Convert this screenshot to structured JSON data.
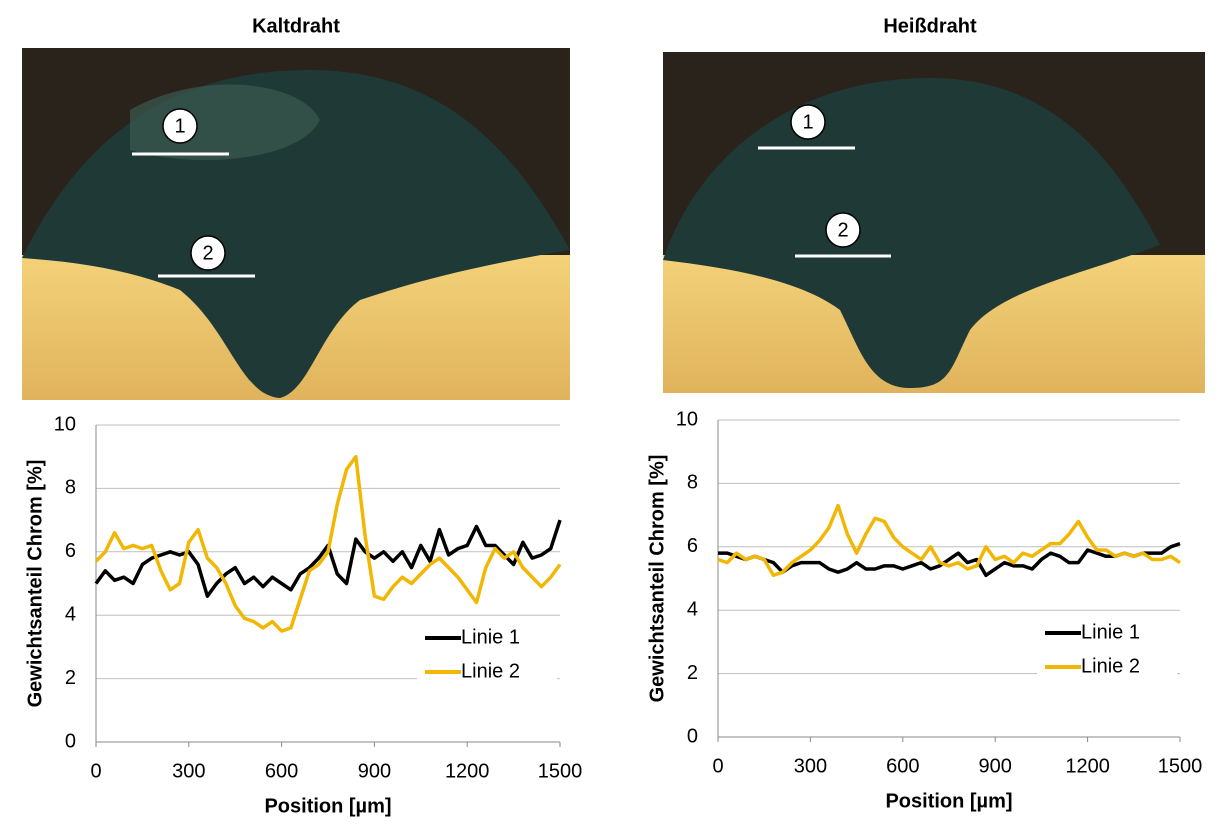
{
  "chart_data": [
    {
      "type": "line",
      "title": "Kaltdraht",
      "annotations": [
        "1",
        "2"
      ],
      "x_label": "Position [µm]",
      "y_label": "Gewichtsanteil Chrom [%]",
      "x": [
        0,
        30,
        60,
        90,
        120,
        150,
        180,
        210,
        240,
        270,
        300,
        330,
        360,
        390,
        420,
        450,
        480,
        510,
        540,
        570,
        600,
        630,
        660,
        690,
        720,
        750,
        780,
        810,
        840,
        870,
        900,
        930,
        960,
        990,
        1020,
        1050,
        1080,
        1110,
        1140,
        1170,
        1200,
        1230,
        1260,
        1290,
        1320,
        1350,
        1380,
        1410,
        1440,
        1470,
        1500
      ],
      "series": [
        {
          "name": "Linie 1",
          "color": "#000000",
          "values": [
            5.0,
            5.4,
            5.1,
            5.2,
            5.0,
            5.6,
            5.8,
            5.9,
            6.0,
            5.9,
            6.0,
            5.6,
            4.6,
            5.0,
            5.3,
            5.5,
            5.0,
            5.2,
            4.9,
            5.2,
            5.0,
            4.8,
            5.3,
            5.5,
            5.8,
            6.2,
            5.3,
            5.0,
            6.4,
            6.0,
            5.8,
            6.0,
            5.7,
            6.0,
            5.5,
            6.2,
            5.7,
            6.7,
            5.9,
            6.1,
            6.2,
            6.8,
            6.2,
            6.2,
            5.9,
            5.6,
            6.3,
            5.8,
            5.9,
            6.1,
            7.0
          ]
        },
        {
          "name": "Linie 2",
          "color": "#f2b705",
          "values": [
            5.7,
            6.0,
            6.6,
            6.1,
            6.2,
            6.1,
            6.2,
            5.4,
            4.8,
            5.0,
            6.3,
            6.7,
            5.8,
            5.5,
            5.0,
            4.3,
            3.9,
            3.8,
            3.6,
            3.8,
            3.5,
            3.6,
            4.5,
            5.4,
            5.6,
            6.0,
            7.5,
            8.6,
            9.0,
            6.5,
            4.6,
            4.5,
            4.9,
            5.2,
            5.0,
            5.3,
            5.6,
            5.8,
            5.5,
            5.2,
            4.8,
            4.4,
            5.5,
            6.1,
            5.8,
            6.0,
            5.5,
            5.2,
            4.9,
            5.2,
            5.6
          ]
        }
      ],
      "xlim": [
        0,
        1500
      ],
      "xticks": [
        0,
        300,
        600,
        900,
        1200,
        1500
      ],
      "ylim": [
        0,
        10
      ],
      "yticks": [
        0,
        2,
        4,
        6,
        8,
        10
      ],
      "grid": true,
      "legend": "lower right"
    },
    {
      "type": "line",
      "title": "Heißdraht",
      "annotations": [
        "1",
        "2"
      ],
      "x_label": "Position [µm]",
      "y_label": "Gewichtsanteil Chrom [%]",
      "x": [
        0,
        30,
        60,
        90,
        120,
        150,
        180,
        210,
        240,
        270,
        300,
        330,
        360,
        390,
        420,
        450,
        480,
        510,
        540,
        570,
        600,
        630,
        660,
        690,
        720,
        750,
        780,
        810,
        840,
        870,
        900,
        930,
        960,
        990,
        1020,
        1050,
        1080,
        1110,
        1140,
        1170,
        1200,
        1230,
        1260,
        1290,
        1320,
        1350,
        1380,
        1410,
        1440,
        1470,
        1500
      ],
      "series": [
        {
          "name": "Linie 1",
          "color": "#000000",
          "values": [
            5.8,
            5.8,
            5.7,
            5.6,
            5.7,
            5.6,
            5.5,
            5.2,
            5.4,
            5.5,
            5.5,
            5.5,
            5.3,
            5.2,
            5.3,
            5.5,
            5.3,
            5.3,
            5.4,
            5.4,
            5.3,
            5.4,
            5.5,
            5.3,
            5.4,
            5.6,
            5.8,
            5.5,
            5.6,
            5.1,
            5.3,
            5.5,
            5.4,
            5.4,
            5.3,
            5.6,
            5.8,
            5.7,
            5.5,
            5.5,
            5.9,
            5.8,
            5.7,
            5.7,
            5.8,
            5.7,
            5.8,
            5.8,
            5.8,
            6.0,
            6.1
          ]
        },
        {
          "name": "Linie 2",
          "color": "#f2b705",
          "values": [
            5.6,
            5.5,
            5.8,
            5.6,
            5.7,
            5.6,
            5.1,
            5.2,
            5.5,
            5.7,
            5.9,
            6.2,
            6.6,
            7.3,
            6.4,
            5.8,
            6.4,
            6.9,
            6.8,
            6.3,
            6.0,
            5.8,
            5.6,
            6.0,
            5.5,
            5.4,
            5.5,
            5.3,
            5.4,
            6.0,
            5.6,
            5.7,
            5.5,
            5.8,
            5.7,
            5.9,
            6.1,
            6.1,
            6.4,
            6.8,
            6.3,
            5.9,
            5.9,
            5.7,
            5.8,
            5.7,
            5.8,
            5.6,
            5.6,
            5.7,
            5.5
          ]
        }
      ],
      "xlim": [
        0,
        1500
      ],
      "xticks": [
        0,
        300,
        600,
        900,
        1200,
        1500
      ],
      "ylim": [
        0,
        10
      ],
      "yticks": [
        0,
        2,
        4,
        6,
        8,
        10
      ],
      "grid": true,
      "legend": "lower right"
    }
  ]
}
